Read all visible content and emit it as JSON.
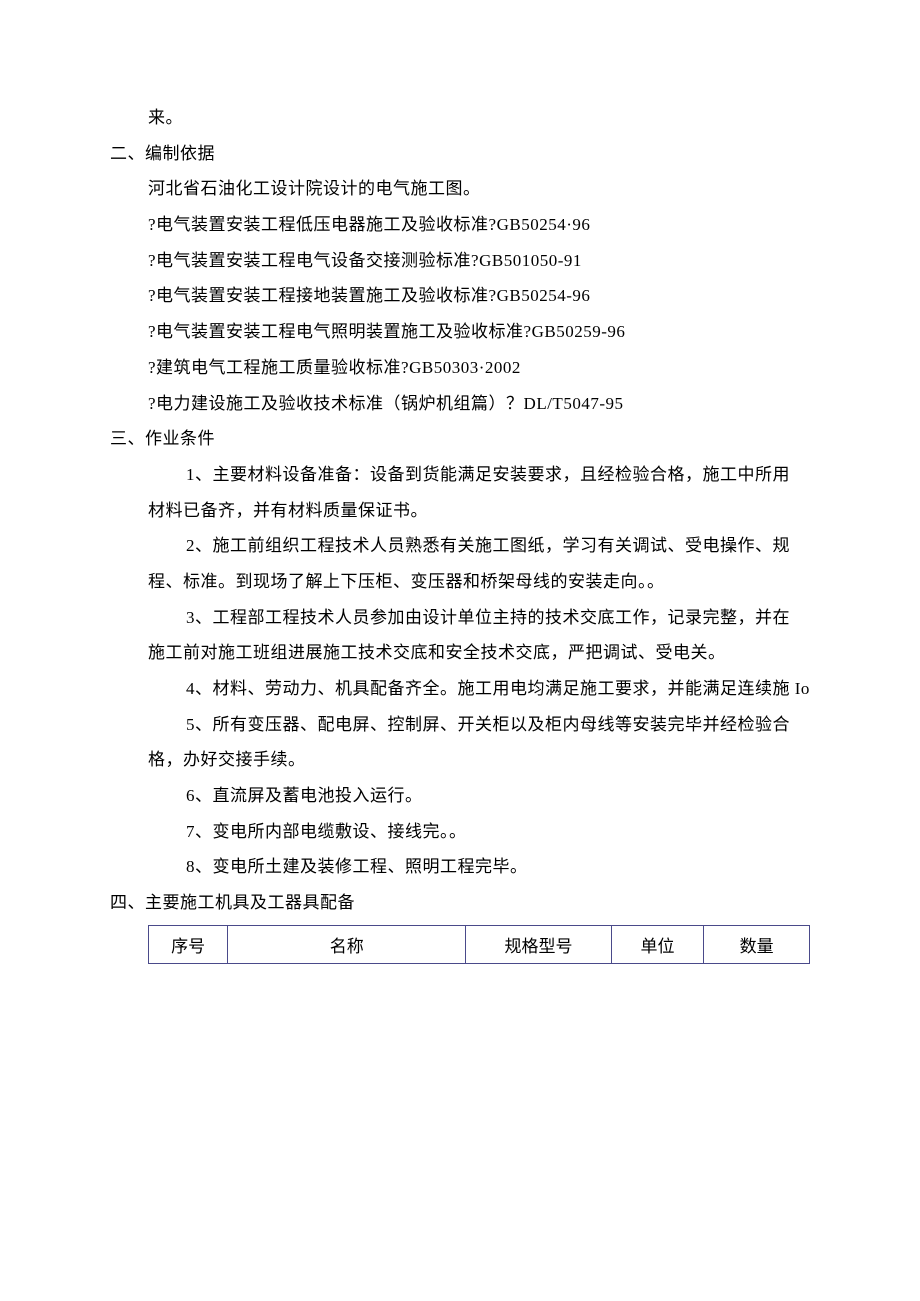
{
  "lines": {
    "l0": "来。",
    "s2": "二、编制依据",
    "l1": "河北省石油化工设计院设计的电气施工图。",
    "l2": "?电气装置安装工程低压电器施工及验收标准?GB50254·96",
    "l3": "?电气装置安装工程电气设备交接测验标准?GB501050-91",
    "l4": "?电气装置安装工程接地装置施工及验收标准?GB50254-96",
    "l5": "?电气装置安装工程电气照明装置施工及验收标准?GB50259-96",
    "l6": "?建筑电气工程施工质量验收标准?GB50303·2002",
    "l7": "?电力建设施工及验收技术标准（锅炉机组篇）？DL/T5047-95",
    "s3": "三、作业条件",
    "p1a": "1、主要材料设备准备：设备到货能满足安装要求，且经检验合格，施工中所用",
    "p1b": "材料已备齐，并有材料质量保证书。",
    "p2a": "2、施工前组织工程技术人员熟悉有关施工图纸，学习有关调试、受电操作、规",
    "p2b": "程、标准。到现场了解上下压柜、变压器和桥架母线的安装走向。。",
    "p3a": "3、工程部工程技术人员参加由设计单位主持的技术交底工作，记录完整，并在",
    "p3b": "施工前对施工班组进展施工技术交底和安全技术交底，严把调试、受电关。",
    "p4": "4、材料、劳动力、机具配备齐全。施工用电均满足施工要求，并能满足连续施 Io",
    "p5a": "5、所有变压器、配电屏、控制屏、开关柜以及柜内母线等安装完毕并经检验合",
    "p5b": "格，办好交接手续。",
    "p6": "6、直流屏及蓄电池投入运行。",
    "p7": "7、变电所内部电缆敷设、接线完。。",
    "p8": "8、变电所土建及装修工程、照明工程完毕。",
    "s4": "四、主要施工机具及工器具配备"
  },
  "table": {
    "headers": {
      "seq": "序号",
      "name": "名称",
      "spec": "规格型号",
      "unit": "单位",
      "qty": "数量"
    }
  },
  "style": {
    "text_color": "#000000",
    "background_color": "#ffffff",
    "table_border_color": "#4a4a8a",
    "font_size_body": 17,
    "line_height": 2.1
  }
}
